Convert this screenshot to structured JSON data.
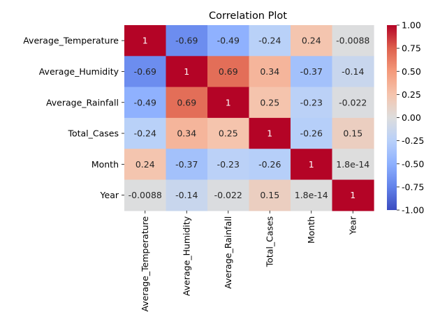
{
  "chart_data": {
    "type": "heatmap",
    "title": "Correlation Plot",
    "xlabel": "",
    "ylabel": "",
    "row_labels": [
      "Average_Temperature",
      "Average_Humidity",
      "Average_Rainfall",
      "Total_Cases",
      "Month",
      "Year"
    ],
    "col_labels": [
      "Average_Temperature",
      "Average_Humidity",
      "Average_Rainfall",
      "Total_Cases",
      "Month",
      "Year"
    ],
    "values": [
      [
        1,
        -0.69,
        -0.49,
        -0.24,
        0.24,
        -0.0088
      ],
      [
        -0.69,
        1,
        0.69,
        0.34,
        -0.37,
        -0.14
      ],
      [
        -0.49,
        0.69,
        1,
        0.25,
        -0.23,
        -0.022
      ],
      [
        -0.24,
        0.34,
        0.25,
        1,
        -0.26,
        0.15
      ],
      [
        0.24,
        -0.37,
        -0.23,
        -0.26,
        1,
        1.8e-14
      ],
      [
        -0.0088,
        -0.14,
        -0.022,
        0.15,
        1.8e-14,
        1
      ]
    ],
    "cell_labels": [
      [
        "1",
        "-0.69",
        "-0.49",
        "-0.24",
        "0.24",
        "-0.0088"
      ],
      [
        "-0.69",
        "1",
        "0.69",
        "0.34",
        "-0.37",
        "-0.14"
      ],
      [
        "-0.49",
        "0.69",
        "1",
        "0.25",
        "-0.23",
        "-0.022"
      ],
      [
        "-0.24",
        "0.34",
        "0.25",
        "1",
        "-0.26",
        "0.15"
      ],
      [
        "0.24",
        "-0.37",
        "-0.23",
        "-0.26",
        "1",
        "1.8e-14"
      ],
      [
        "-0.0088",
        "-0.14",
        "-0.022",
        "0.15",
        "1.8e-14",
        "1"
      ]
    ],
    "colormap": "coolwarm",
    "vmin": -1,
    "vmax": 1,
    "colorbar_ticks": [
      "-1.00",
      "-0.75",
      "-0.50",
      "-0.25",
      "0.00",
      "0.25",
      "0.50",
      "0.75",
      "1.00"
    ],
    "grid": false
  }
}
